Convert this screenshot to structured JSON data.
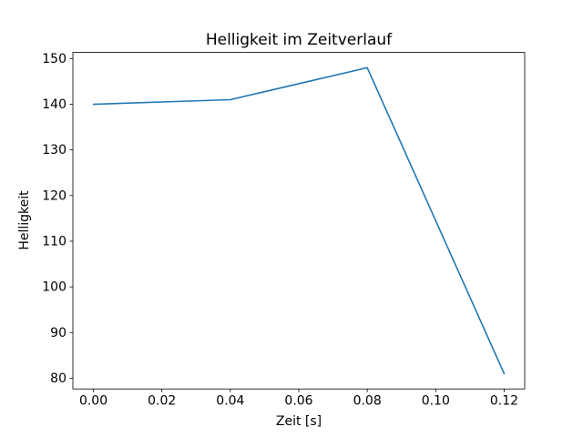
{
  "chart_data": {
    "type": "line",
    "title": "Helligkeit im Zeitverlauf",
    "xlabel": "Zeit [s]",
    "ylabel": "Helligkeit",
    "x": [
      0.0,
      0.02,
      0.04,
      0.06,
      0.08,
      0.1,
      0.12
    ],
    "y": [
      140,
      140.5,
      141,
      144.5,
      148,
      114.5,
      81
    ],
    "series": [
      {
        "name": "Helligkeit",
        "x": [
          0.0,
          0.02,
          0.04,
          0.06,
          0.08,
          0.1,
          0.12
        ],
        "values": [
          140,
          140.5,
          141,
          144.5,
          148,
          114.5,
          81
        ]
      }
    ],
    "xticks": [
      0.0,
      0.02,
      0.04,
      0.06,
      0.08,
      0.1,
      0.12
    ],
    "yticks": [
      80,
      90,
      100,
      110,
      120,
      130,
      140,
      150
    ],
    "xlim": [
      -0.006,
      0.126
    ],
    "ylim": [
      77.65,
      151.35
    ],
    "line_color": "#1f77b4",
    "axis_color": "#000000",
    "background_color": "#ffffff",
    "grid": false,
    "legend_position": "none"
  }
}
